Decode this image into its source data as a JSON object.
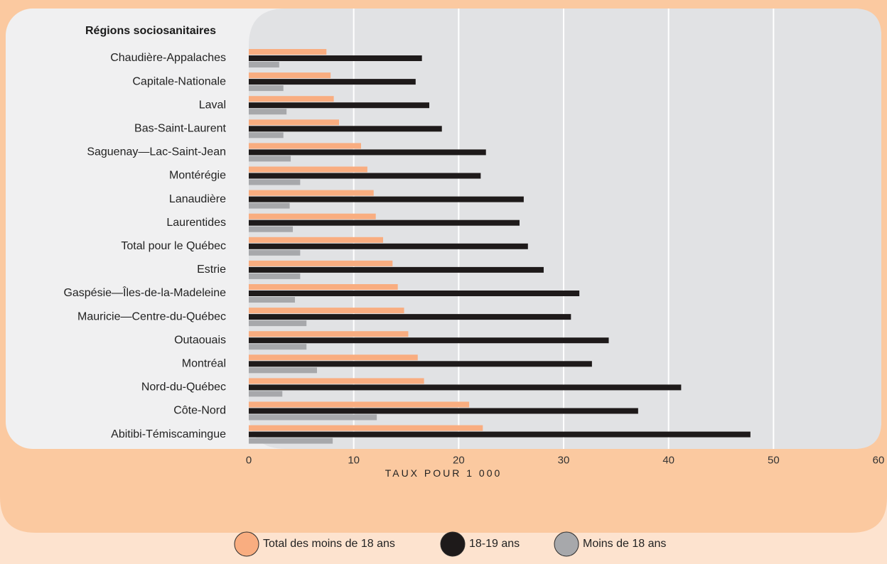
{
  "chart_data": {
    "type": "bar",
    "orientation": "horizontal",
    "y_title": "Régions sociosanitaires",
    "xlabel": "TAUX POUR 1 000",
    "xlim": [
      0,
      60
    ],
    "xticks": [
      0,
      10,
      20,
      30,
      40,
      50,
      60
    ],
    "grid": true,
    "legend_position": "bottom",
    "categories": [
      "Chaudière-Appalaches",
      "Capitale-Nationale",
      "Laval",
      "Bas-Saint-Laurent",
      "Saguenay—Lac-Saint-Jean",
      "Montérégie",
      "Lanaudière",
      "Laurentides",
      "Total pour le Québec",
      "Estrie",
      "Gaspésie—Îles-de-la-Madeleine",
      "Mauricie—Centre-du-Québec",
      "Outaouais",
      "Montréal",
      "Nord-du-Québec",
      "Côte-Nord",
      "Abitibi-Témiscamingue"
    ],
    "series": [
      {
        "name": "Total des moins de 18 ans",
        "color": "#f9ad80",
        "values": [
          7.4,
          7.8,
          8.1,
          8.6,
          10.7,
          11.3,
          11.9,
          12.1,
          12.8,
          13.7,
          14.2,
          14.8,
          15.2,
          16.1,
          16.7,
          21.0,
          22.3
        ]
      },
      {
        "name": "18-19 ans",
        "color": "#1e1a1a",
        "values": [
          16.5,
          15.9,
          17.2,
          18.4,
          22.6,
          22.1,
          26.2,
          25.8,
          26.6,
          28.1,
          31.5,
          30.7,
          34.3,
          32.7,
          41.2,
          37.1,
          47.8
        ]
      },
      {
        "name": "Moins de 18 ans",
        "color": "#a7a8ab",
        "values": [
          2.9,
          3.3,
          3.6,
          3.3,
          4.0,
          4.9,
          3.9,
          4.2,
          4.9,
          4.9,
          4.4,
          5.5,
          5.5,
          6.5,
          3.2,
          12.2,
          8.0
        ]
      }
    ]
  }
}
